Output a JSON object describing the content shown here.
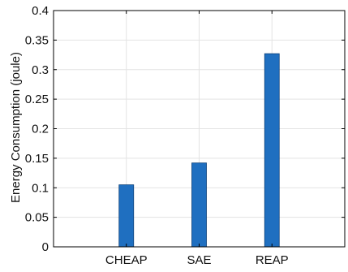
{
  "chart_data": {
    "type": "bar",
    "title": "",
    "xlabel": "",
    "ylabel": "Energy Consumption (joule)",
    "categories": [
      "CHEAP",
      "SAE",
      "REAP"
    ],
    "values": [
      0.105,
      0.142,
      0.327
    ],
    "ylim": [
      0,
      0.4
    ],
    "yticks": [
      0,
      0.05,
      0.1,
      0.15,
      0.2,
      0.25,
      0.3,
      0.35,
      0.4
    ],
    "ytick_labels": [
      "0",
      "0.05",
      "0.1",
      "0.15",
      "0.2",
      "0.25",
      "0.3",
      "0.35",
      "0.4"
    ],
    "grid": true,
    "colors": {
      "bar": "#1f6fc0",
      "bar_edge": "#0b3f78",
      "grid": "#e3e3e3",
      "axis": "#000000"
    }
  }
}
